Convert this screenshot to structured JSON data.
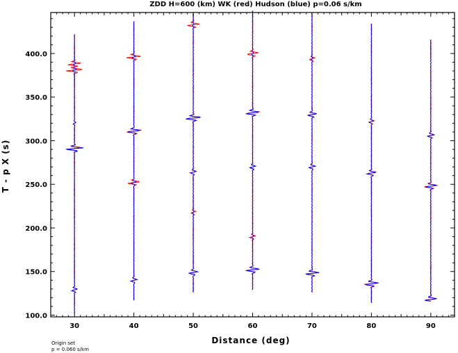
{
  "chart_data": {
    "type": "line",
    "title": "ZDD H=600 (km) WK (red) Hudson (blue) p=0.06 s/km",
    "xlabel": "Distance (deg)",
    "ylabel": "T - p X (s)",
    "xlim": [
      26,
      94
    ],
    "ylim": [
      98,
      447
    ],
    "x_ticks": [
      30,
      40,
      50,
      60,
      70,
      80,
      90
    ],
    "x_tick_labels": [
      "30",
      "40",
      "50",
      "60",
      "70",
      "80",
      "90"
    ],
    "y_ticks": [
      100,
      150,
      200,
      250,
      300,
      350,
      400
    ],
    "y_tick_labels": [
      "100.0",
      "150.0",
      "200.0",
      "250.0",
      "300.0",
      "350.0",
      "400.0"
    ],
    "grid": false,
    "series": [
      {
        "name": "WK",
        "color": "#ff0000"
      },
      {
        "name": "Hudson",
        "color": "#0000ff"
      }
    ],
    "traces": [
      {
        "distance": 30,
        "t_start": 102,
        "t_end": 422,
        "arrivals": [
          {
            "t": 129,
            "amp_red": 1.2,
            "amp_blue": 1.6
          },
          {
            "t": 291,
            "amp_red": 2.8,
            "amp_blue": 4.8
          },
          {
            "t": 320,
            "amp_red": 0.8,
            "amp_blue": 0.6
          },
          {
            "t": 381,
            "amp_red": 4.4,
            "amp_blue": 0.9
          },
          {
            "t": 388,
            "amp_red": 3.6,
            "amp_blue": 0.5
          }
        ]
      },
      {
        "distance": 40,
        "t_start": 117,
        "t_end": 437,
        "arrivals": [
          {
            "t": 140,
            "amp_red": 1.4,
            "amp_blue": 1.8
          },
          {
            "t": 252,
            "amp_red": 3.4,
            "amp_blue": 1.4
          },
          {
            "t": 311,
            "amp_red": 4.2,
            "amp_blue": 3.6
          },
          {
            "t": 396,
            "amp_red": 4.0,
            "amp_blue": 0.8
          }
        ]
      },
      {
        "distance": 50,
        "t_start": 126,
        "t_end": 446,
        "arrivals": [
          {
            "t": 149,
            "amp_red": 2.4,
            "amp_blue": 2.6
          },
          {
            "t": 218,
            "amp_red": 1.2,
            "amp_blue": 0.3
          },
          {
            "t": 264,
            "amp_red": 1.8,
            "amp_blue": 1.4
          },
          {
            "t": 326,
            "amp_red": 4.0,
            "amp_blue": 4.2
          },
          {
            "t": 433,
            "amp_red": 3.2,
            "amp_blue": 0.4
          }
        ]
      },
      {
        "distance": 60,
        "t_start": 129,
        "t_end": 449,
        "arrivals": [
          {
            "t": 152,
            "amp_red": 3.4,
            "amp_blue": 3.8
          },
          {
            "t": 190,
            "amp_red": 1.6,
            "amp_blue": 0.4
          },
          {
            "t": 270,
            "amp_red": 1.4,
            "amp_blue": 1.6
          },
          {
            "t": 332,
            "amp_red": 4.0,
            "amp_blue": 3.6
          },
          {
            "t": 400,
            "amp_red": 3.0,
            "amp_blue": 0.6
          }
        ]
      },
      {
        "distance": 70,
        "t_start": 126,
        "t_end": 446,
        "arrivals": [
          {
            "t": 148,
            "amp_red": 3.6,
            "amp_blue": 3.8
          },
          {
            "t": 270,
            "amp_red": 1.6,
            "amp_blue": 1.8
          },
          {
            "t": 330,
            "amp_red": 2.6,
            "amp_blue": 2.4
          },
          {
            "t": 394,
            "amp_red": 1.4,
            "amp_blue": 0.4
          }
        ]
      },
      {
        "distance": 80,
        "t_start": 114,
        "t_end": 434,
        "arrivals": [
          {
            "t": 136,
            "amp_red": 4.0,
            "amp_blue": 3.6
          },
          {
            "t": 263,
            "amp_red": 2.2,
            "amp_blue": 2.6
          },
          {
            "t": 322,
            "amp_red": 1.4,
            "amp_blue": 1.0
          }
        ]
      },
      {
        "distance": 90,
        "t_start": 116,
        "t_end": 416,
        "arrivals": [
          {
            "t": 118,
            "amp_red": 3.0,
            "amp_blue": 3.2
          },
          {
            "t": 248,
            "amp_red": 3.6,
            "amp_blue": 3.0
          },
          {
            "t": 306,
            "amp_red": 2.0,
            "amp_blue": 1.6
          }
        ]
      }
    ]
  },
  "footer": {
    "line1": "Origin set",
    "line2": "p = 0.060 s/km"
  }
}
